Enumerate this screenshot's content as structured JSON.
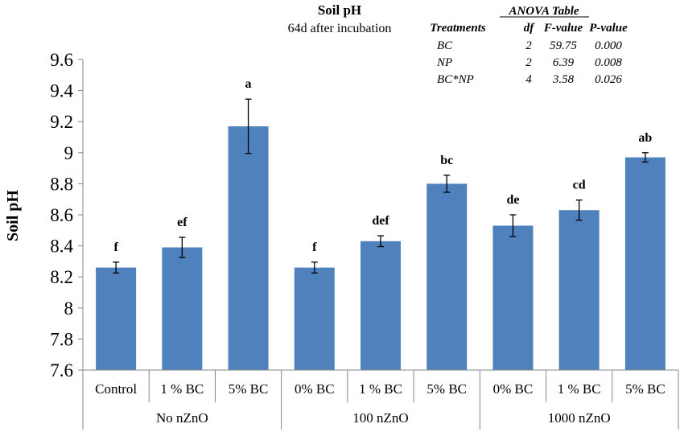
{
  "chart_data": {
    "type": "bar",
    "title": "Soil pH",
    "subtitle": "64d after incubation",
    "ylabel": "Soil pH",
    "xlabel": "",
    "ylim": [
      7.6,
      9.6
    ],
    "yticks": [
      "7.6",
      "7.8",
      "8",
      "8.2",
      "8.4",
      "8.6",
      "8.8",
      "9",
      "9.2",
      "9.4",
      "9.6"
    ],
    "grid": false,
    "bar_color": "#4f81bd",
    "groups": [
      {
        "label": "No nZnO",
        "size": 3
      },
      {
        "label": "100 nZnO",
        "size": 3
      },
      {
        "label": "1000 nZnO",
        "size": 3
      }
    ],
    "categories": [
      "Control",
      "1 % BC",
      "5% BC",
      "0% BC",
      "1 % BC",
      "5% BC",
      "0% BC",
      "1 % BC",
      "5% BC"
    ],
    "values": [
      8.26,
      8.39,
      9.17,
      8.26,
      8.43,
      8.8,
      8.53,
      8.63,
      8.97
    ],
    "errors": [
      0.035,
      0.065,
      0.175,
      0.035,
      0.035,
      0.055,
      0.07,
      0.065,
      0.03
    ],
    "letters": [
      "f",
      "ef",
      "a",
      "f",
      "def",
      "bc",
      "de",
      "cd",
      "ab"
    ],
    "anova": {
      "title": "ANOVA Table",
      "headers": [
        "Treatments",
        "df",
        "F-value",
        "P-value"
      ],
      "rows": [
        [
          "BC",
          "2",
          "59.75",
          "0.000"
        ],
        [
          "NP",
          "2",
          "6.39",
          "0.008"
        ],
        [
          "BC*NP",
          "4",
          "3.58",
          "0.026"
        ]
      ]
    }
  }
}
